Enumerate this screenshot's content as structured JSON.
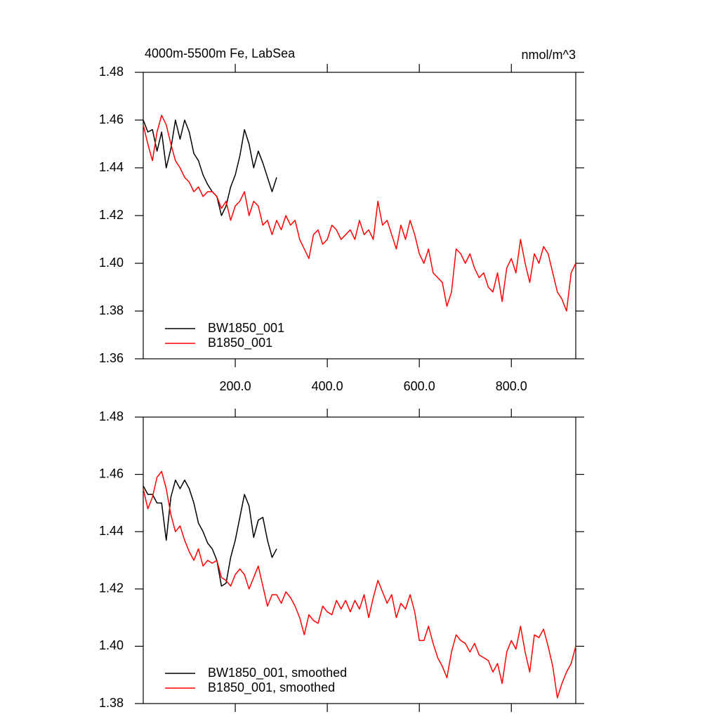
{
  "chart_data": [
    {
      "type": "line",
      "title": "4000m-5500m Fe, LabSea",
      "units": "nmol/m^3",
      "x": [
        0,
        10,
        20,
        30,
        40,
        50,
        60,
        70,
        80,
        90,
        100,
        110,
        120,
        130,
        140,
        150,
        160,
        170,
        180,
        190,
        200,
        210,
        220,
        230,
        240,
        250,
        260,
        270,
        280,
        290,
        300,
        310,
        320,
        330,
        340,
        350,
        360,
        370,
        380,
        390,
        400,
        410,
        420,
        430,
        440,
        450,
        460,
        470,
        480,
        490,
        500,
        510,
        520,
        530,
        540,
        550,
        560,
        570,
        580,
        590,
        600,
        610,
        620,
        630,
        640,
        650,
        660,
        670,
        680,
        690,
        700,
        710,
        720,
        730,
        740,
        750,
        760,
        770,
        780,
        790,
        800,
        810,
        820,
        830,
        840,
        850,
        860,
        870,
        880,
        890,
        900,
        910,
        920,
        930,
        940
      ],
      "series": [
        {
          "name": "BW1850_001",
          "color": "#000000",
          "values": [
            1.46,
            1.455,
            1.456,
            1.447,
            1.455,
            1.44,
            1.448,
            1.46,
            1.452,
            1.46,
            1.455,
            1.446,
            1.443,
            1.437,
            1.433,
            1.43,
            1.428,
            1.42,
            1.424,
            1.432,
            1.437,
            1.445,
            1.456,
            1.45,
            1.44,
            1.447,
            1.442,
            1.436,
            1.43,
            1.436,
            null,
            null,
            null,
            null,
            null,
            null,
            null,
            null,
            null,
            null,
            null,
            null,
            null,
            null,
            null,
            null,
            null,
            null,
            null,
            null,
            null,
            null,
            null,
            null,
            null,
            null,
            null,
            null,
            null,
            null,
            null,
            null,
            null,
            null,
            null,
            null,
            null,
            null,
            null,
            null,
            null,
            null,
            null,
            null,
            null,
            null,
            null,
            null,
            null,
            null,
            null,
            null,
            null,
            null,
            null,
            null,
            null,
            null,
            null,
            null,
            null,
            null,
            null,
            null,
            null
          ]
        },
        {
          "name": "B1850_001",
          "color": "#ff0000",
          "values": [
            1.458,
            1.45,
            1.443,
            1.455,
            1.462,
            1.458,
            1.45,
            1.443,
            1.44,
            1.436,
            1.434,
            1.43,
            1.432,
            1.428,
            1.43,
            1.43,
            1.428,
            1.423,
            1.426,
            1.418,
            1.424,
            1.426,
            1.43,
            1.42,
            1.426,
            1.424,
            1.416,
            1.418,
            1.412,
            1.418,
            1.414,
            1.42,
            1.416,
            1.418,
            1.41,
            1.406,
            1.402,
            1.412,
            1.414,
            1.408,
            1.41,
            1.416,
            1.414,
            1.41,
            1.412,
            1.414,
            1.41,
            1.418,
            1.412,
            1.414,
            1.41,
            1.426,
            1.416,
            1.418,
            1.412,
            1.406,
            1.416,
            1.41,
            1.418,
            1.412,
            1.404,
            1.4,
            1.406,
            1.396,
            1.394,
            1.392,
            1.382,
            1.388,
            1.406,
            1.404,
            1.4,
            1.404,
            1.398,
            1.394,
            1.396,
            1.39,
            1.388,
            1.396,
            1.384,
            1.398,
            1.402,
            1.396,
            1.41,
            1.4,
            1.392,
            1.404,
            1.4,
            1.407,
            1.404,
            1.396,
            1.388,
            1.385,
            1.38,
            1.396,
            1.4
          ]
        }
      ],
      "xlim": [
        0,
        940
      ],
      "xticks": [
        {
          "value": 200,
          "label": "200.0"
        },
        {
          "value": 400,
          "label": "400.0"
        },
        {
          "value": 600,
          "label": "600.0"
        },
        {
          "value": 800,
          "label": "800.0"
        }
      ],
      "ylim": [
        1.36,
        1.48
      ],
      "yticks": [
        1.36,
        1.38,
        {
          "value": 1.4,
          "label": "1.40"
        },
        1.42,
        1.44,
        1.46,
        1.48
      ],
      "grid": false,
      "legend": "lower left"
    },
    {
      "type": "line",
      "x": [
        0,
        10,
        20,
        30,
        40,
        50,
        60,
        70,
        80,
        90,
        100,
        110,
        120,
        130,
        140,
        150,
        160,
        170,
        180,
        190,
        200,
        210,
        220,
        230,
        240,
        250,
        260,
        270,
        280,
        290,
        300,
        310,
        320,
        330,
        340,
        350,
        360,
        370,
        380,
        390,
        400,
        410,
        420,
        430,
        440,
        450,
        460,
        470,
        480,
        490,
        500,
        510,
        520,
        530,
        540,
        550,
        560,
        570,
        580,
        590,
        600,
        610,
        620,
        630,
        640,
        650,
        660,
        670,
        680,
        690,
        700,
        710,
        720,
        730,
        740,
        750,
        760,
        770,
        780,
        790,
        800,
        810,
        820,
        830,
        840,
        850,
        860,
        870,
        880,
        890,
        900,
        910,
        920,
        930,
        940
      ],
      "series": [
        {
          "name": "BW1850_001, smoothed",
          "color": "#000000",
          "values": [
            1.456,
            1.453,
            1.453,
            1.45,
            1.45,
            1.437,
            1.452,
            1.458,
            1.455,
            1.458,
            1.455,
            1.45,
            1.443,
            1.44,
            1.436,
            1.434,
            1.43,
            1.421,
            1.422,
            1.431,
            1.437,
            1.445,
            1.453,
            1.449,
            1.438,
            1.444,
            1.445,
            1.437,
            1.431,
            1.434,
            null,
            null,
            null,
            null,
            null,
            null,
            null,
            null,
            null,
            null,
            null,
            null,
            null,
            null,
            null,
            null,
            null,
            null,
            null,
            null,
            null,
            null,
            null,
            null,
            null,
            null,
            null,
            null,
            null,
            null,
            null,
            null,
            null,
            null,
            null,
            null,
            null,
            null,
            null,
            null,
            null,
            null,
            null,
            null,
            null,
            null,
            null,
            null,
            null,
            null,
            null,
            null,
            null,
            null,
            null,
            null,
            null,
            null,
            null,
            null,
            null,
            null,
            null,
            null,
            null
          ]
        },
        {
          "name": "B1850_001, smoothed",
          "color": "#ff0000",
          "values": [
            1.455,
            1.448,
            1.452,
            1.459,
            1.461,
            1.455,
            1.446,
            1.44,
            1.442,
            1.437,
            1.433,
            1.43,
            1.434,
            1.428,
            1.43,
            1.429,
            1.43,
            1.424,
            1.423,
            1.421,
            1.425,
            1.427,
            1.425,
            1.42,
            1.424,
            1.428,
            1.421,
            1.414,
            1.418,
            1.418,
            1.415,
            1.419,
            1.417,
            1.414,
            1.41,
            1.404,
            1.411,
            1.409,
            1.408,
            1.414,
            1.412,
            1.411,
            1.416,
            1.413,
            1.416,
            1.412,
            1.416,
            1.413,
            1.418,
            1.41,
            1.417,
            1.423,
            1.419,
            1.415,
            1.418,
            1.41,
            1.415,
            1.413,
            1.418,
            1.412,
            1.402,
            1.402,
            1.407,
            1.401,
            1.396,
            1.393,
            1.389,
            1.398,
            1.404,
            1.402,
            1.401,
            1.398,
            1.401,
            1.397,
            1.396,
            1.395,
            1.391,
            1.394,
            1.387,
            1.398,
            1.402,
            1.399,
            1.407,
            1.398,
            1.391,
            1.404,
            1.403,
            1.406,
            1.4,
            1.393,
            1.382,
            1.387,
            1.391,
            1.394,
            1.4
          ]
        }
      ],
      "xlim": [
        0,
        940
      ],
      "xticks": [
        200,
        400,
        600,
        800
      ],
      "ylim": [
        1.38,
        1.48
      ],
      "yticks": [
        1.38,
        {
          "value": 1.4,
          "label": "1.40"
        },
        1.42,
        1.44,
        1.46,
        1.48
      ],
      "grid": false,
      "legend": "lower left"
    }
  ]
}
